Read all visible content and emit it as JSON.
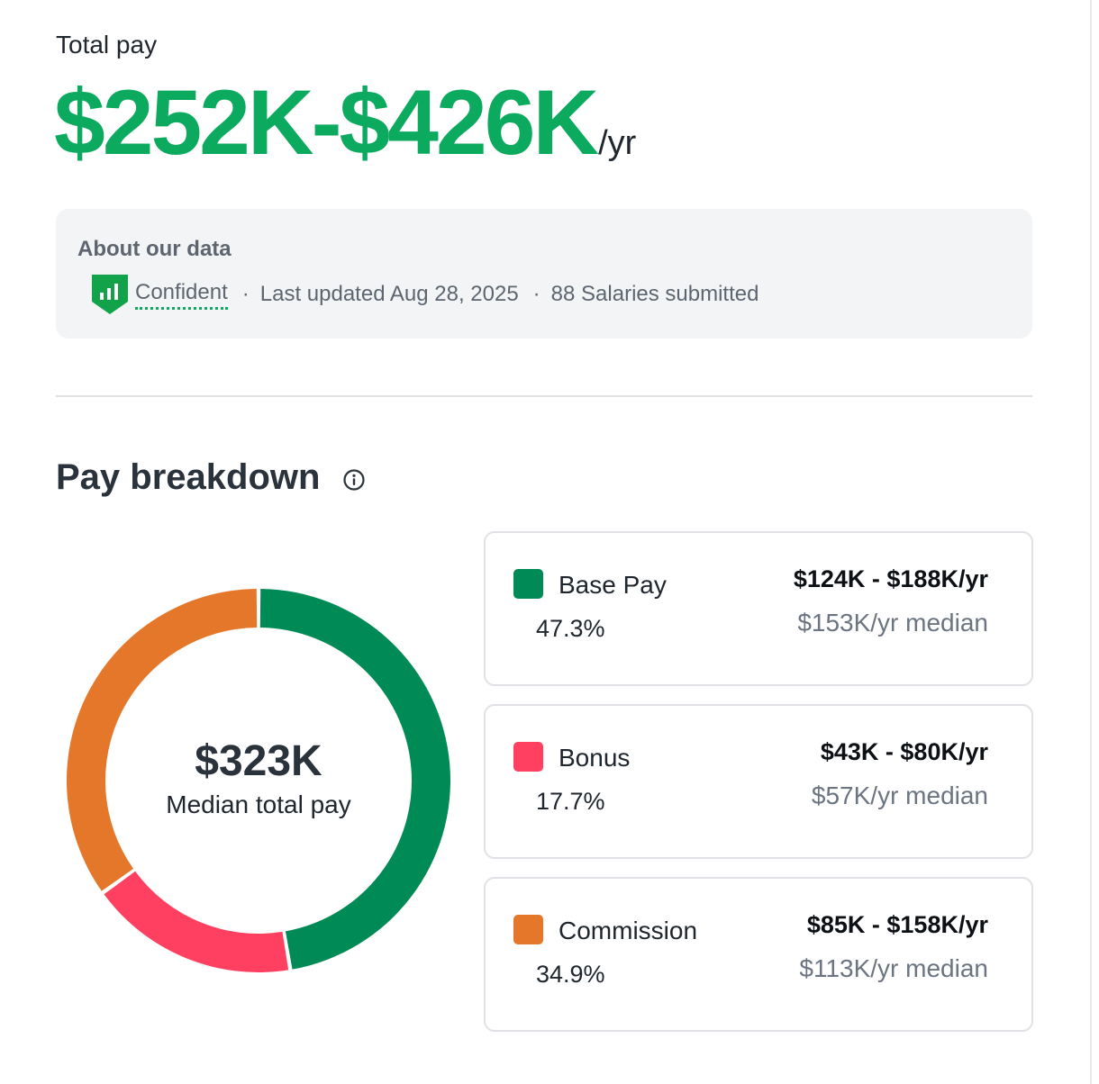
{
  "header": {
    "total_label": "Total pay",
    "total_range": "$252K-$426K",
    "total_unit": "/yr",
    "accent_color": "#0caa5f"
  },
  "about": {
    "title": "About our data",
    "confidence_icon": "shield-chart-icon",
    "confidence_label": "Confident",
    "separator": "·",
    "last_updated": "Last updated Aug 28, 2025",
    "salaries_submitted": "88 Salaries submitted"
  },
  "breakdown": {
    "title": "Pay breakdown",
    "info_icon": "info-icon"
  },
  "chart_data": {
    "type": "pie",
    "categories": [
      "Base Pay",
      "Bonus",
      "Commission"
    ],
    "values": [
      47.3,
      17.7,
      34.9
    ],
    "colors": [
      "#008a55",
      "#ff4061",
      "#e5772a"
    ],
    "center_value": "$323K",
    "center_label": "Median total pay"
  },
  "cards": [
    {
      "name": "Base Pay",
      "percent": "47.3%",
      "range": "$124K - $188K/yr",
      "median": "$153K/yr median",
      "color": "#008a55"
    },
    {
      "name": "Bonus",
      "percent": "17.7%",
      "range": "$43K - $80K/yr",
      "median": "$57K/yr median",
      "color": "#ff4061"
    },
    {
      "name": "Commission",
      "percent": "34.9%",
      "range": "$85K - $158K/yr",
      "median": "$113K/yr median",
      "color": "#e5772a"
    }
  ]
}
